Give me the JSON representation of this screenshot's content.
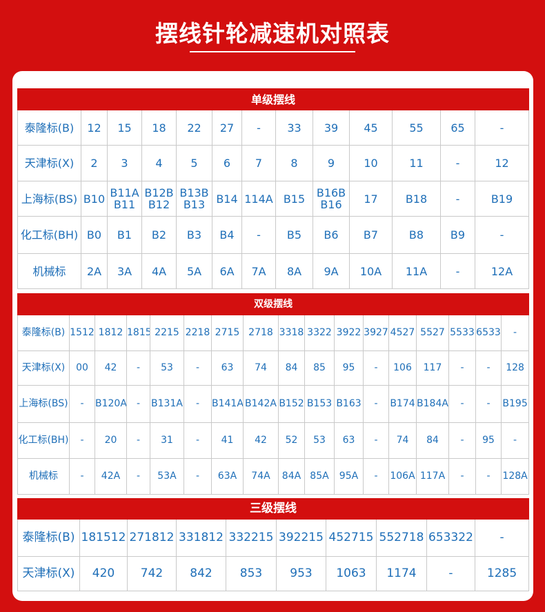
{
  "title": "摆线针轮减速机对照表",
  "single": {
    "header": "单级摆线",
    "rows": [
      {
        "label": "泰隆标(B)",
        "cells": [
          "12",
          "15",
          "18",
          "22",
          "27",
          "-",
          "33",
          "39",
          "45",
          "55",
          "65",
          "-"
        ]
      },
      {
        "label": "天津标(X)",
        "cells": [
          "2",
          "3",
          "4",
          "5",
          "6",
          "7",
          "8",
          "9",
          "10",
          "11",
          "-",
          "12"
        ]
      },
      {
        "label": "上海标(BS)",
        "cells": [
          "B10",
          "B11A\nB11",
          "B12B\nB12",
          "B13B\nB13",
          "B14",
          "114A",
          "B15",
          "B16B\nB16",
          "17",
          "B18",
          "-",
          "B19"
        ]
      },
      {
        "label": "化工标(BH)",
        "cells": [
          "B0",
          "B1",
          "B2",
          "B3",
          "B4",
          "-",
          "B5",
          "B6",
          "B7",
          "B8",
          "B9",
          "-"
        ]
      },
      {
        "label": "机械标",
        "cells": [
          "2A",
          "3A",
          "4A",
          "5A",
          "6A",
          "7A",
          "8A",
          "9A",
          "10A",
          "11A",
          "-",
          "12A"
        ]
      }
    ]
  },
  "double": {
    "header": "双级摆线",
    "rows": [
      {
        "label": "泰隆标(B)",
        "cells": [
          "1512",
          "1812",
          "1815",
          "2215",
          "2218",
          "2715",
          "2718",
          "3318",
          "3322",
          "3922",
          "3927",
          "4527",
          "5527",
          "5533",
          "6533",
          "-"
        ]
      },
      {
        "label": "天津标(X)",
        "cells": [
          "00",
          "42",
          "-",
          "53",
          "-",
          "63",
          "74",
          "84",
          "85",
          "95",
          "-",
          "106",
          "117",
          "-",
          "-",
          "128"
        ]
      },
      {
        "label": "上海标(BS)",
        "cells": [
          "-",
          "B120A",
          "-",
          "B131A",
          "-",
          "B141A",
          "B142A",
          "B152",
          "B153",
          "B163",
          "-",
          "B174",
          "B184A",
          "-",
          "-",
          "B195"
        ]
      },
      {
        "label": "化工标(BH)",
        "cells": [
          "-",
          "20",
          "-",
          "31",
          "-",
          "41",
          "42",
          "52",
          "53",
          "63",
          "-",
          "74",
          "84",
          "-",
          "95",
          "-"
        ]
      },
      {
        "label": "机械标",
        "cells": [
          "-",
          "42A",
          "-",
          "53A",
          "-",
          "63A",
          "74A",
          "84A",
          "85A",
          "95A",
          "-",
          "106A",
          "117A",
          "-",
          "-",
          "128A"
        ]
      }
    ]
  },
  "triple": {
    "header": "三级摆线",
    "rows": [
      {
        "label": "泰隆标(B)",
        "cells": [
          "181512",
          "271812",
          "331812",
          "332215",
          "392215",
          "452715",
          "552718",
          "653322",
          "-"
        ]
      },
      {
        "label": "天津标(X)",
        "cells": [
          "420",
          "742",
          "842",
          "853",
          "953",
          "1063",
          "1174",
          "-",
          "1285"
        ]
      }
    ]
  }
}
